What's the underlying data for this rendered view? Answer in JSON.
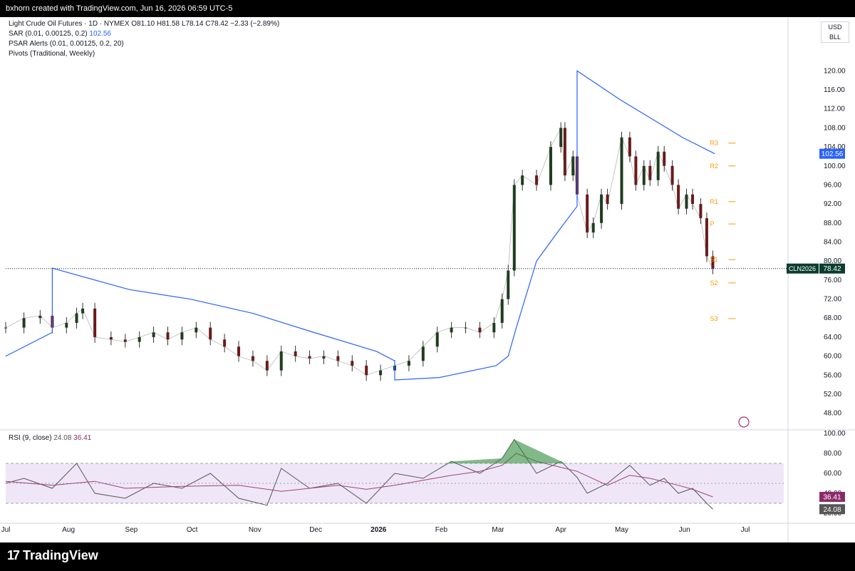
{
  "header": {
    "credit": "bxhorn created with TradingView.com, Jun 16, 2026 06:59 UTC-5"
  },
  "legend": {
    "symbol_line": "Light Crude Oil Futures · 1D · NYMEX  O81.10  H81.58  L78.14  C78.42  −2.33 (−2.89%)",
    "sar_label": "SAR (0.01, 0.00125, 0.2)",
    "sar_value": "102.56",
    "psar_label": "PSAR Alerts (0.01, 0.00125, 0.2, 20)",
    "pivots_label": "Pivots (Traditional, Weekly)"
  },
  "currency": {
    "code": "USD",
    "unit": "BLL"
  },
  "rsi_legend": {
    "label": "RSI (9, close)",
    "value1": "24.08",
    "value2": "36.41"
  },
  "footer": {
    "brand": "TradingView"
  },
  "colors": {
    "up": "#1e3d1e",
    "down": "#6b1a1a",
    "sar": "#2962ff",
    "rsi": "#555555",
    "rsi_ma": "#a0407a",
    "pivot": "#ff9800",
    "rsi_band": "#efe7f8",
    "rsi_overbought": "#2e8b3a"
  },
  "chart_data": {
    "type": "line",
    "title": "Light Crude Oil Futures · 1D · NYMEX",
    "price_axis": {
      "range": [
        46,
        122
      ],
      "ticks": [
        48,
        52,
        56,
        60,
        64,
        68,
        72,
        76,
        80,
        84,
        88,
        92,
        96,
        100,
        104,
        108,
        112,
        116,
        120
      ]
    },
    "time_axis": [
      "Jul",
      "Aug",
      "Sep",
      "Oct",
      "Nov",
      "Dec",
      "2026",
      "Feb",
      "Mar",
      "Apr",
      "May",
      "Jun",
      "Jul"
    ],
    "ohlc_latest": {
      "open": 81.1,
      "high": 81.58,
      "low": 78.14,
      "close": 78.42,
      "change": -2.33,
      "change_pct": -2.89
    },
    "last_price_label": {
      "symbol": "CLN2026",
      "value": "78.42",
      "price": 78.42
    },
    "sar_label": {
      "value": "102.56",
      "price": 102.56
    },
    "series": [
      {
        "name": "Price (close)",
        "points": [
          [
            "Jul 1",
            66
          ],
          [
            "Jul 10",
            68
          ],
          [
            "Jul 18",
            68.5
          ],
          [
            "Jul 24",
            66
          ],
          [
            "Jul 31",
            67
          ],
          [
            "Aug 5",
            69
          ],
          [
            "Aug 8",
            70
          ],
          [
            "Aug 14",
            64
          ],
          [
            "Aug 22",
            63.5
          ],
          [
            "Aug 29",
            63
          ],
          [
            "Sep 5",
            64
          ],
          [
            "Sep 12",
            65
          ],
          [
            "Sep 19",
            63.5
          ],
          [
            "Sep 26",
            65
          ],
          [
            "Oct 3",
            66
          ],
          [
            "Oct 10",
            63.5
          ],
          [
            "Oct 17",
            62
          ],
          [
            "Oct 24",
            60
          ],
          [
            "Oct 31",
            59
          ],
          [
            "Nov 7",
            57
          ],
          [
            "Nov 14",
            61
          ],
          [
            "Nov 21",
            60
          ],
          [
            "Nov 28",
            59.5
          ],
          [
            "Dec 5",
            60
          ],
          [
            "Dec 12",
            59
          ],
          [
            "Dec 19",
            58
          ],
          [
            "Dec 26",
            56
          ],
          [
            "Jan 2",
            57
          ],
          [
            "Jan 9",
            58
          ],
          [
            "Jan 16",
            59
          ],
          [
            "Jan 23",
            62
          ],
          [
            "Jan 30",
            65
          ],
          [
            "Feb 6",
            66
          ],
          [
            "Feb 13",
            66
          ],
          [
            "Feb 20",
            65
          ],
          [
            "Feb 27",
            67
          ],
          [
            "Mar 3",
            72
          ],
          [
            "Mar 6",
            78
          ],
          [
            "Mar 9",
            96
          ],
          [
            "Mar 13",
            98
          ],
          [
            "Mar 20",
            96
          ],
          [
            "Mar 27",
            104
          ],
          [
            "Apr 1",
            108
          ],
          [
            "Apr 3",
            98
          ],
          [
            "Apr 7",
            102
          ],
          [
            "Apr 9",
            94
          ],
          [
            "Apr 14",
            86
          ],
          [
            "Apr 17",
            88
          ],
          [
            "Apr 21",
            94
          ],
          [
            "Apr 24",
            92
          ],
          [
            "May 1",
            106
          ],
          [
            "May 5",
            102
          ],
          [
            "May 8",
            96
          ],
          [
            "May 12",
            100
          ],
          [
            "May 15",
            97
          ],
          [
            "May 19",
            103
          ],
          [
            "May 22",
            100
          ],
          [
            "May 26",
            96
          ],
          [
            "May 29",
            91
          ],
          [
            "Jun 2",
            94
          ],
          [
            "Jun 5",
            92
          ],
          [
            "Jun 9",
            89
          ],
          [
            "Jun 12",
            81
          ],
          [
            "Jun 15",
            78.42
          ]
        ]
      },
      {
        "name": "SAR",
        "points": [
          [
            "Jul 1",
            60
          ],
          [
            "Jul 24",
            65
          ],
          [
            "Jul 24",
            78.5
          ],
          [
            "Aug 31",
            74
          ],
          [
            "Sep 30",
            72
          ],
          [
            "Oct 31",
            69
          ],
          [
            "Nov 30",
            65
          ],
          [
            "Dec 31",
            61
          ],
          [
            "Jan 9",
            59
          ],
          [
            "Jan 9",
            55
          ],
          [
            "Jan 31",
            55.5
          ],
          [
            "Feb 28",
            58
          ],
          [
            "Mar 6",
            60
          ],
          [
            "Mar 10",
            66
          ],
          [
            "Mar 20",
            80
          ],
          [
            "Apr 1",
            87
          ],
          [
            "Apr 9",
            91.5
          ],
          [
            "Apr 9",
            120
          ],
          [
            "Apr 30",
            114
          ],
          [
            "May 31",
            106
          ],
          [
            "Jun 16",
            102.56
          ]
        ]
      }
    ],
    "pivots": [
      {
        "name": "R3",
        "value": 104.8
      },
      {
        "name": "R2",
        "value": 100.0
      },
      {
        "name": "R1",
        "value": 92.5
      },
      {
        "name": "P",
        "value": 87.8
      },
      {
        "name": "S1",
        "value": 80.3
      },
      {
        "name": "S2",
        "value": 75.4
      },
      {
        "name": "S3",
        "value": 67.9
      }
    ],
    "rsi": {
      "range": [
        20,
        100
      ],
      "ticks": [
        20,
        40,
        60,
        80,
        100
      ],
      "tick_labels": [
        "20.00",
        "40.00",
        "60.00",
        "80.00",
        "100.00"
      ],
      "bands": [
        30,
        70
      ],
      "midline": 50,
      "latest": {
        "rsi": 24.08,
        "ma": 36.41
      },
      "series": [
        {
          "name": "RSI",
          "points": [
            [
              "Jul 1",
              50
            ],
            [
              "Jul 10",
              55
            ],
            [
              "Jul 24",
              45
            ],
            [
              "Aug 5",
              70
            ],
            [
              "Aug 14",
              40
            ],
            [
              "Aug 29",
              35
            ],
            [
              "Sep 12",
              50
            ],
            [
              "Sep 26",
              45
            ],
            [
              "Oct 10",
              60
            ],
            [
              "Oct 24",
              35
            ],
            [
              "Nov 7",
              28
            ],
            [
              "Nov 14",
              65
            ],
            [
              "Nov 28",
              45
            ],
            [
              "Dec 12",
              50
            ],
            [
              "Dec 26",
              30
            ],
            [
              "Jan 9",
              60
            ],
            [
              "Jan 23",
              55
            ],
            [
              "Feb 6",
              72
            ],
            [
              "Feb 20",
              60
            ],
            [
              "Mar 3",
              75
            ],
            [
              "Mar 9",
              94
            ],
            [
              "Mar 20",
              60
            ],
            [
              "Apr 1",
              72
            ],
            [
              "Apr 9",
              56
            ],
            [
              "Apr 14",
              40
            ],
            [
              "Apr 24",
              50
            ],
            [
              "May 5",
              68
            ],
            [
              "May 15",
              48
            ],
            [
              "May 22",
              55
            ],
            [
              "May 29",
              40
            ],
            [
              "Jun 5",
              45
            ],
            [
              "Jun 12",
              30
            ],
            [
              "Jun 15",
              24.08
            ]
          ]
        },
        {
          "name": "RSI MA",
          "points": [
            [
              "Jul 1",
              52
            ],
            [
              "Jul 24",
              48
            ],
            [
              "Aug 14",
              52
            ],
            [
              "Aug 29",
              45
            ],
            [
              "Sep 26",
              47
            ],
            [
              "Oct 24",
              48
            ],
            [
              "Nov 14",
              42
            ],
            [
              "Dec 12",
              48
            ],
            [
              "Dec 26",
              44
            ],
            [
              "Jan 9",
              48
            ],
            [
              "Feb 6",
              58
            ],
            [
              "Feb 20",
              62
            ],
            [
              "Mar 3",
              68
            ],
            [
              "Mar 10",
              80
            ],
            [
              "Mar 20",
              72
            ],
            [
              "Apr 1",
              66
            ],
            [
              "Apr 9",
              62
            ],
            [
              "Apr 24",
              48
            ],
            [
              "May 5",
              58
            ],
            [
              "May 15",
              55
            ],
            [
              "May 29",
              48
            ],
            [
              "Jun 5",
              44
            ],
            [
              "Jun 15",
              36.41
            ]
          ]
        }
      ]
    }
  }
}
